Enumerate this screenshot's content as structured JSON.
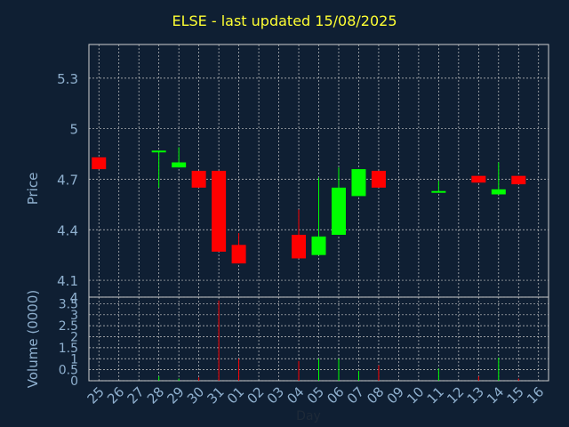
{
  "chart_data": [
    {
      "type": "candlestick",
      "title": "ELSE - last updated 15/08/2025",
      "ylabel": "Price",
      "ylim": [
        4.0,
        5.5
      ],
      "yticks": [
        "4",
        "4.1",
        "4.4",
        "4.7",
        "5",
        "5.3"
      ],
      "grid": true,
      "categories": [
        "25",
        "26",
        "27",
        "28",
        "29",
        "30",
        "31",
        "01",
        "02",
        "03",
        "04",
        "05",
        "06",
        "07",
        "08",
        "09",
        "10",
        "11",
        "12",
        "13",
        "14",
        "15",
        "16"
      ],
      "candles": [
        {
          "day": "25",
          "open": 4.83,
          "close": 4.76,
          "high": 4.83,
          "low": 4.76
        },
        {
          "day": "28",
          "open": 4.86,
          "close": 4.87,
          "high": 4.87,
          "low": 4.65
        },
        {
          "day": "29",
          "open": 4.77,
          "close": 4.8,
          "high": 4.89,
          "low": 4.77
        },
        {
          "day": "30",
          "open": 4.75,
          "close": 4.65,
          "high": 4.75,
          "low": 4.65
        },
        {
          "day": "31",
          "open": 4.75,
          "close": 4.27,
          "high": 4.75,
          "low": 4.27
        },
        {
          "day": "01",
          "open": 4.31,
          "close": 4.2,
          "high": 4.38,
          "low": 4.2
        },
        {
          "day": "04",
          "open": 4.37,
          "close": 4.23,
          "high": 4.52,
          "low": 4.23
        },
        {
          "day": "05",
          "open": 4.25,
          "close": 4.36,
          "high": 4.71,
          "low": 4.25
        },
        {
          "day": "06",
          "open": 4.37,
          "close": 4.65,
          "high": 4.77,
          "low": 4.37
        },
        {
          "day": "07",
          "open": 4.6,
          "close": 4.76,
          "high": 4.76,
          "low": 4.6
        },
        {
          "day": "08",
          "open": 4.75,
          "close": 4.65,
          "high": 4.75,
          "low": 4.65
        },
        {
          "day": "11",
          "open": 4.62,
          "close": 4.63,
          "high": 4.69,
          "low": 4.62
        },
        {
          "day": "13",
          "open": 4.72,
          "close": 4.68,
          "high": 4.72,
          "low": 4.68
        },
        {
          "day": "14",
          "open": 4.61,
          "close": 4.64,
          "high": 4.8,
          "low": 4.61
        },
        {
          "day": "15",
          "open": 4.72,
          "close": 4.67,
          "high": 4.72,
          "low": 4.67
        }
      ],
      "up_color": "#00ff00",
      "down_color": "#ff0000"
    },
    {
      "type": "bar",
      "xlabel": "Day",
      "ylabel": "Volume (0000)",
      "ylim": [
        0,
        3.8
      ],
      "yticks": [
        "0",
        "0.5",
        "1",
        "1.5",
        "2",
        "2.5",
        "3",
        "3.5"
      ],
      "grid": true,
      "categories": [
        "25",
        "26",
        "27",
        "28",
        "29",
        "30",
        "31",
        "01",
        "02",
        "03",
        "04",
        "05",
        "06",
        "07",
        "08",
        "09",
        "10",
        "11",
        "12",
        "13",
        "14",
        "15",
        "16"
      ],
      "values": [
        0.0,
        0.0,
        0.0,
        0.2,
        0.1,
        0.15,
        3.65,
        1.0,
        0.0,
        0.0,
        0.9,
        1.0,
        1.0,
        0.45,
        0.7,
        0.0,
        0.0,
        0.55,
        0.0,
        0.2,
        1.05,
        0.1,
        0.0
      ],
      "colors": [
        "#ff0000",
        "#000000",
        "#000000",
        "#00ff00",
        "#00ff00",
        "#ff0000",
        "#ff0000",
        "#ff0000",
        "#000000",
        "#000000",
        "#ff0000",
        "#00ff00",
        "#00ff00",
        "#00ff00",
        "#ff0000",
        "#000000",
        "#000000",
        "#00ff00",
        "#000000",
        "#ff0000",
        "#00ff00",
        "#ff0000",
        "#000000"
      ]
    }
  ]
}
